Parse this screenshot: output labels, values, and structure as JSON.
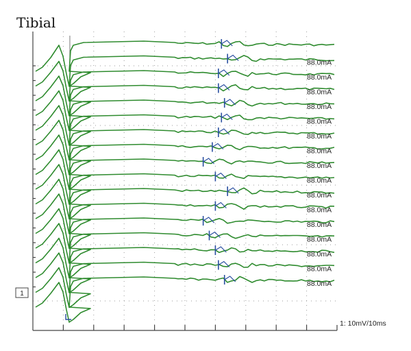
{
  "chart_data": {
    "type": "line",
    "title": "Tibial",
    "scale_label": "1: 10mV/10ms",
    "channel_label": "1",
    "grid": true,
    "trace_color": "#2e8b2e",
    "marker_color": "#2a4fa0",
    "time_divisions": 10,
    "stimulus_time_ms": 9,
    "traces": [
      {
        "label": "",
        "latency_ms": 62,
        "end_level": 0.4
      },
      {
        "label": "88.0mA",
        "latency_ms": 64,
        "end_level": 0.5
      },
      {
        "label": "88.0mA",
        "latency_ms": 61,
        "end_level": 0.6
      },
      {
        "label": "88.0mA",
        "latency_ms": 61,
        "end_level": 0.6
      },
      {
        "label": "88.0mA",
        "latency_ms": 63,
        "end_level": 0.6
      },
      {
        "label": "88.0mA",
        "latency_ms": 62,
        "end_level": 0.6
      },
      {
        "label": "88.0mA",
        "latency_ms": 61,
        "end_level": 0.6
      },
      {
        "label": "88.0mA",
        "latency_ms": 59,
        "end_level": 0.6
      },
      {
        "label": "88.0mA",
        "latency_ms": 56,
        "end_level": 0.6
      },
      {
        "label": "88.0mA",
        "latency_ms": 60,
        "end_level": 0.6
      },
      {
        "label": "88.0mA",
        "latency_ms": 64,
        "end_level": 0.6
      },
      {
        "label": "88.0mA",
        "latency_ms": 60,
        "end_level": 0.6
      },
      {
        "label": "88.0mA",
        "latency_ms": 56,
        "end_level": 0.6
      },
      {
        "label": "88.0mA",
        "latency_ms": 58,
        "end_level": 0.6
      },
      {
        "label": "88.0mA",
        "latency_ms": 60,
        "end_level": 0.6
      },
      {
        "label": "88.0mA",
        "latency_ms": 61,
        "end_level": 0.6
      },
      {
        "label": "88.0mA",
        "latency_ms": 63,
        "end_level": 0.6
      }
    ]
  }
}
